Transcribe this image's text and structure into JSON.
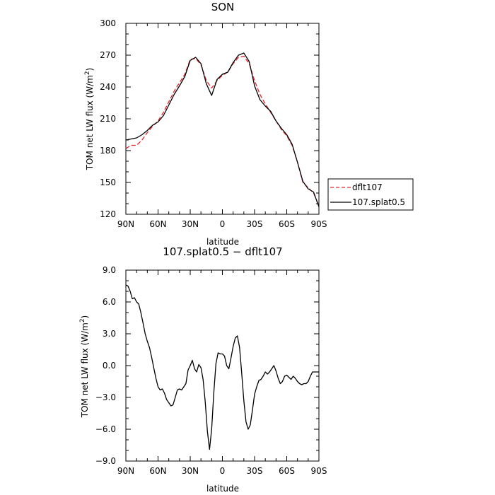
{
  "chart_data": [
    {
      "type": "line",
      "title": "SON",
      "xlabel": "latitude",
      "ylabel": "TOM net LW flux (W/m",
      "ylabel_sup": "2",
      "ylabel_close": ")",
      "xlim": [
        90,
        -90
      ],
      "ylim": [
        120,
        300
      ],
      "x_ticks": [
        90,
        60,
        30,
        0,
        -30,
        -60,
        -90
      ],
      "x_tick_labels": [
        "90N",
        "60N",
        "30N",
        "0",
        "30S",
        "60S",
        "90S"
      ],
      "y_ticks": [
        120,
        150,
        180,
        210,
        240,
        270,
        300
      ],
      "y_tick_labels": [
        "120",
        "150",
        "180",
        "210",
        "240",
        "270",
        "300"
      ],
      "legend": {
        "placement": "right",
        "entries": [
          "dflt107",
          "107.splat0.5"
        ]
      },
      "series": [
        {
          "name": "dflt107",
          "color": "#e8212b",
          "dash": "dashed",
          "x": [
            90,
            85,
            80,
            75,
            70,
            65,
            60,
            55,
            50,
            45,
            40,
            35,
            30,
            25,
            20,
            15,
            10,
            5,
            0,
            -5,
            -10,
            -15,
            -20,
            -25,
            -30,
            -35,
            -40,
            -45,
            -50,
            -55,
            -60,
            -65,
            -70,
            -75,
            -80,
            -85,
            -90
          ],
          "y": [
            182,
            185,
            185,
            190,
            197,
            203,
            208,
            216,
            226,
            236,
            244,
            252,
            266,
            267,
            261,
            246,
            239,
            246,
            251,
            254,
            262,
            268,
            269,
            262,
            246,
            233,
            224,
            216,
            208,
            200,
            194,
            185,
            169,
            150,
            145,
            140,
            128
          ]
        },
        {
          "name": "107.splat0.5",
          "color": "#000000",
          "dash": "solid",
          "x": [
            90,
            85,
            80,
            75,
            70,
            65,
            60,
            55,
            50,
            45,
            40,
            35,
            30,
            25,
            20,
            15,
            10,
            5,
            0,
            -5,
            -10,
            -15,
            -20,
            -25,
            -30,
            -35,
            -40,
            -45,
            -50,
            -55,
            -60,
            -65,
            -70,
            -75,
            -80,
            -85,
            -90
          ],
          "y": [
            190,
            191,
            192,
            195,
            199,
            204,
            207,
            213,
            223,
            233,
            241,
            250,
            265,
            268,
            262,
            243,
            232,
            247,
            252,
            254,
            263,
            270,
            272,
            264,
            241,
            228,
            222,
            217,
            208,
            201,
            195,
            186,
            169,
            151,
            144,
            141,
            127
          ]
        }
      ]
    },
    {
      "type": "line",
      "title": "107.splat0.5 − dflt107",
      "xlabel": "latitude",
      "ylabel": "TOM net LW flux (W/m",
      "ylabel_sup": "2",
      "ylabel_close": ")",
      "xlim": [
        90,
        -90
      ],
      "ylim": [
        -9,
        9
      ],
      "x_ticks": [
        90,
        60,
        30,
        0,
        -30,
        -60,
        -90
      ],
      "x_tick_labels": [
        "90N",
        "60N",
        "30N",
        "0",
        "30S",
        "60S",
        "90S"
      ],
      "y_ticks": [
        -9,
        -6,
        -3,
        0,
        3,
        6,
        9
      ],
      "y_tick_labels": [
        "−9.0",
        "−6.0",
        "−3.0",
        "0.0",
        "3.0",
        "6.0",
        "9.0"
      ],
      "series": [
        {
          "color": "#000000",
          "dash": "solid",
          "x": [
            90,
            88,
            86,
            84,
            82,
            80,
            78,
            76,
            74,
            72,
            70,
            68,
            66,
            64,
            62,
            60,
            58,
            56,
            54,
            52,
            50,
            48,
            46,
            44,
            42,
            40,
            38,
            36,
            34,
            32,
            30,
            28,
            26,
            24,
            22,
            20,
            18,
            16,
            14,
            12,
            10,
            8,
            6,
            4,
            2,
            0,
            -2,
            -4,
            -6,
            -8,
            -10,
            -12,
            -14,
            -16,
            -18,
            -20,
            -22,
            -24,
            -26,
            -28,
            -30,
            -32,
            -34,
            -36,
            -38,
            -40,
            -42,
            -44,
            -46,
            -48,
            -50,
            -52,
            -54,
            -56,
            -58,
            -60,
            -62,
            -64,
            -66,
            -68,
            -70,
            -72,
            -74,
            -76,
            -78,
            -80,
            -82,
            -84,
            -86,
            -88,
            -90
          ],
          "y": [
            7.6,
            7.5,
            7.0,
            6.3,
            6.4,
            6.0,
            5.8,
            5.0,
            4.0,
            3.0,
            2.3,
            1.7,
            0.8,
            -0.2,
            -1.2,
            -2.0,
            -2.3,
            -2.2,
            -2.6,
            -3.2,
            -3.5,
            -3.8,
            -3.7,
            -3.0,
            -2.3,
            -2.2,
            -2.3,
            -2.0,
            -1.7,
            -0.4,
            0.0,
            0.5,
            -0.3,
            -0.6,
            0.1,
            -0.2,
            -1.3,
            -3.4,
            -6.2,
            -7.9,
            -6.0,
            -2.5,
            0.2,
            1.2,
            1.1,
            1.1,
            0.9,
            0.0,
            -0.3,
            0.7,
            1.8,
            2.6,
            2.8,
            1.7,
            -0.7,
            -3.3,
            -5.3,
            -6.0,
            -5.6,
            -4.2,
            -2.7,
            -2.0,
            -1.4,
            -1.3,
            -1.0,
            -0.6,
            -0.8,
            -0.6,
            -0.3,
            0.0,
            -0.5,
            -1.2,
            -1.7,
            -1.5,
            -1.0,
            -0.9,
            -1.1,
            -1.3,
            -1.0,
            -1.2,
            -1.5,
            -1.7,
            -1.8,
            -1.7,
            -1.7,
            -1.5,
            -1.0,
            -0.6,
            -0.6,
            -0.6,
            -0.6
          ]
        }
      ]
    }
  ]
}
